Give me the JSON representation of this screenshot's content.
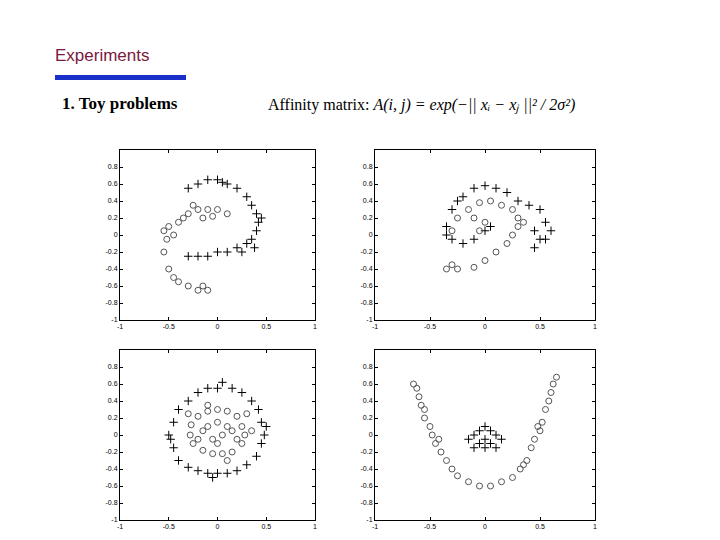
{
  "slide": {
    "title": "Experiments",
    "subtitle": "1. Toy problems",
    "formula_label": "Affinity matrix: ",
    "formula": "A(i, j) = exp(−|| xᵢ − xⱼ ||² / 2σ²)"
  },
  "chart_data": [
    {
      "type": "scatter",
      "xlim": [
        -1,
        1
      ],
      "xticks": [
        -1,
        -0.5,
        0,
        0.5,
        1
      ],
      "ylim": [
        -1,
        1
      ],
      "yticks": [
        -1,
        -0.8,
        -0.6,
        -0.4,
        -0.2,
        0,
        0.2,
        0.4,
        0.6,
        0.8
      ],
      "series": [
        {
          "marker": "plus",
          "color": "#000000",
          "x": [
            -0.3,
            -0.2,
            -0.1,
            0,
            0.1,
            0.2,
            0.3,
            0.35,
            0.4,
            0.42,
            0.4,
            0.35,
            0.3,
            0.2,
            0.1,
            0,
            -0.1,
            -0.2,
            -0.3,
            0.45,
            0.38,
            0.25,
            0.05
          ],
          "y": [
            0.55,
            0.6,
            0.65,
            0.65,
            0.6,
            0.55,
            0.45,
            0.35,
            0.25,
            0.15,
            0.05,
            -0.05,
            -0.1,
            -0.15,
            -0.2,
            -0.2,
            -0.25,
            -0.25,
            -0.25,
            0.2,
            -0.15,
            -0.2,
            0.62
          ]
        },
        {
          "marker": "circle",
          "color": "#555555",
          "x": [
            -0.55,
            -0.5,
            -0.55,
            -0.5,
            -0.45,
            -0.4,
            -0.3,
            -0.2,
            -0.1,
            -0.4,
            -0.3,
            -0.2,
            -0.1,
            0,
            0.1,
            -0.45,
            -0.15,
            -0.35,
            -0.25,
            -0.05,
            -0.52,
            -0.15
          ],
          "y": [
            0.05,
            0.1,
            -0.2,
            -0.4,
            -0.5,
            -0.55,
            -0.6,
            -0.65,
            -0.65,
            0.15,
            0.25,
            0.3,
            0.3,
            0.3,
            0.25,
            0,
            0.2,
            0.2,
            0.35,
            0.22,
            -0.05,
            -0.6
          ]
        }
      ]
    },
    {
      "type": "scatter",
      "xlim": [
        -1,
        1
      ],
      "xticks": [
        -1,
        -0.5,
        0,
        0.5,
        1
      ],
      "ylim": [
        -1,
        1
      ],
      "yticks": [
        -1,
        -0.8,
        -0.6,
        -0.4,
        -0.2,
        0,
        0.2,
        0.4,
        0.6,
        0.8
      ],
      "series": [
        {
          "marker": "plus",
          "color": "#000000",
          "x": [
            -0.3,
            -0.2,
            -0.1,
            0,
            0.1,
            0.2,
            0.3,
            0.4,
            0.5,
            0.55,
            0.6,
            0.55,
            -0.35,
            -0.35,
            -0.3,
            -0.2,
            -0.1,
            0,
            0.05,
            0.45,
            0.5,
            0.45,
            -0.25
          ],
          "y": [
            0.3,
            0.45,
            0.55,
            0.58,
            0.55,
            0.5,
            0.4,
            0.35,
            0.3,
            0.15,
            0.05,
            -0.05,
            0.1,
            0,
            -0.05,
            -0.1,
            -0.05,
            0.05,
            0.1,
            0.05,
            -0.05,
            -0.15,
            0.4
          ]
        },
        {
          "marker": "circle",
          "color": "#555555",
          "x": [
            -0.35,
            -0.25,
            -0.1,
            0,
            0.1,
            0.2,
            0.25,
            0.3,
            0.3,
            0.25,
            0.15,
            0.05,
            -0.05,
            -0.15,
            -0.25,
            -0.3,
            -0.1,
            0,
            -0.05,
            -0.3,
            0.35
          ],
          "y": [
            -0.4,
            -0.4,
            -0.38,
            -0.3,
            -0.2,
            -0.1,
            0,
            0.1,
            0.2,
            0.3,
            0.35,
            0.4,
            0.38,
            0.3,
            0.2,
            0.05,
            0.2,
            0.15,
            0.05,
            -0.35,
            0.15
          ]
        }
      ]
    },
    {
      "type": "scatter",
      "xlim": [
        -1,
        1
      ],
      "xticks": [
        -1,
        -0.5,
        0,
        0.5,
        1
      ],
      "ylim": [
        -1,
        1
      ],
      "yticks": [
        -1,
        -0.8,
        -0.6,
        -0.4,
        -0.2,
        0,
        0.2,
        0.4,
        0.6,
        0.8
      ],
      "series": [
        {
          "marker": "plus",
          "color": "#000000",
          "x": [
            0,
            0.15,
            0.25,
            0.35,
            0.42,
            0.45,
            0.48,
            0.45,
            0.4,
            0.3,
            0.2,
            0.1,
            0,
            -0.1,
            -0.2,
            -0.3,
            -0.4,
            -0.45,
            -0.5,
            -0.45,
            -0.4,
            -0.3,
            -0.2,
            -0.1,
            0.5,
            -0.48,
            0.05,
            -0.05
          ],
          "y": [
            0.55,
            0.55,
            0.5,
            0.4,
            0.3,
            0.15,
            0,
            -0.1,
            -0.25,
            -0.35,
            -0.42,
            -0.45,
            -0.45,
            -0.45,
            -0.42,
            -0.38,
            -0.3,
            -0.15,
            0,
            0.15,
            0.3,
            0.4,
            0.5,
            0.55,
            0.1,
            -0.05,
            0.62,
            -0.5
          ]
        },
        {
          "marker": "circle",
          "color": "#555555",
          "x": [
            0,
            0.1,
            0.2,
            0.25,
            0.28,
            0.25,
            0.15,
            0.05,
            -0.05,
            -0.15,
            -0.25,
            -0.28,
            -0.27,
            -0.2,
            -0.1,
            0,
            0.1,
            -0.1,
            0.05,
            -0.05,
            0.15,
            -0.15,
            0,
            0.2,
            -0.2,
            0.3,
            -0.3,
            0.1,
            -0.1,
            0.35
          ],
          "y": [
            0.3,
            0.28,
            0.22,
            0.1,
            0,
            -0.1,
            -0.2,
            -0.22,
            -0.22,
            -0.18,
            -0.1,
            0,
            0.12,
            0.22,
            0.28,
            0.15,
            0.1,
            0.1,
            0,
            -0.05,
            0.05,
            0.05,
            -0.1,
            -0.05,
            -0.05,
            0.25,
            0.25,
            -0.3,
            0.35,
            0.05
          ]
        }
      ]
    },
    {
      "type": "scatter",
      "xlim": [
        -1,
        1
      ],
      "xticks": [
        -1,
        -0.5,
        0,
        0.5,
        1
      ],
      "ylim": [
        -1,
        1
      ],
      "yticks": [
        -1,
        -0.8,
        -0.6,
        -0.4,
        -0.2,
        0,
        0.2,
        0.4,
        0.6,
        0.8
      ],
      "series": [
        {
          "marker": "plus",
          "color": "#000000",
          "x": [
            -0.05,
            0,
            0.05,
            0.1,
            -0.1,
            0,
            0.05,
            -0.05,
            0.1,
            -0.1,
            0,
            0.15,
            -0.15
          ],
          "y": [
            0.05,
            0.1,
            0.05,
            0,
            0,
            -0.05,
            -0.1,
            -0.1,
            -0.15,
            -0.15,
            -0.15,
            -0.05,
            -0.05
          ]
        },
        {
          "marker": "circle",
          "color": "#555555",
          "x": [
            -0.65,
            -0.62,
            -0.6,
            -0.58,
            -0.55,
            -0.5,
            -0.48,
            -0.45,
            -0.4,
            -0.35,
            -0.3,
            -0.25,
            -0.15,
            -0.05,
            0.05,
            0.15,
            0.25,
            0.32,
            0.38,
            0.42,
            0.45,
            0.5,
            0.52,
            0.55,
            0.58,
            0.6,
            0.62,
            0.65,
            -0.55,
            -0.42,
            0.35,
            0.48
          ],
          "y": [
            0.6,
            0.55,
            0.45,
            0.35,
            0.2,
            0.1,
            0,
            -0.1,
            -0.2,
            -0.3,
            -0.4,
            -0.48,
            -0.55,
            -0.6,
            -0.6,
            -0.55,
            -0.5,
            -0.4,
            -0.3,
            -0.15,
            -0.05,
            0.05,
            0.15,
            0.3,
            0.4,
            0.5,
            0.6,
            0.68,
            0.3,
            -0.05,
            -0.35,
            0.1
          ]
        }
      ]
    }
  ]
}
